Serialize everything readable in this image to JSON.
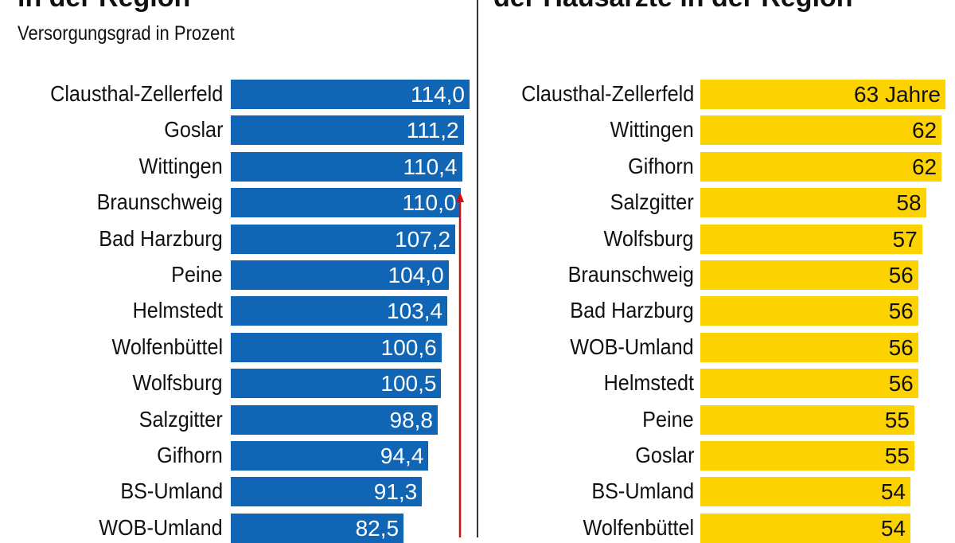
{
  "chart_data": [
    {
      "type": "bar",
      "orientation": "horizontal",
      "title": "in der Region",
      "subtitle": "Versorgungsgrad in Prozent",
      "color": "#1066b5",
      "categories": [
        "Clausthal-Zellerfeld",
        "Goslar",
        "Wittingen",
        "Braunschweig",
        "Bad Harzburg",
        "Peine",
        "Helmstedt",
        "Wolfenbüttel",
        "Wolfsburg",
        "Salzgitter",
        "Gifhorn",
        "BS-Umland",
        "WOB-Umland"
      ],
      "values": [
        114.0,
        111.2,
        110.4,
        110.0,
        107.2,
        104.0,
        103.4,
        100.6,
        100.5,
        98.8,
        94.4,
        91.3,
        82.5
      ],
      "labels": [
        "114,0",
        "111,2",
        "110,4",
        "110,0",
        "107,2",
        "104,0",
        "103,4",
        "100,6",
        "100,5",
        "98,8",
        "94,4",
        "91,3",
        "82,5"
      ],
      "annotation": {
        "type": "arrow",
        "color": "#cc1111",
        "points_to": "Braunschweig"
      }
    },
    {
      "type": "bar",
      "orientation": "horizontal",
      "title": "der Hausärzte in der Region",
      "color": "#fcd200",
      "categories": [
        "Clausthal-Zellerfeld",
        "Wittingen",
        "Gifhorn",
        "Salzgitter",
        "Wolfsburg",
        "Braunschweig",
        "Bad Harzburg",
        "WOB-Umland",
        "Helmstedt",
        "Peine",
        "Goslar",
        "BS-Umland",
        "Wolfenbüttel"
      ],
      "values": [
        63,
        62,
        62,
        58,
        57,
        56,
        56,
        56,
        56,
        55,
        55,
        54,
        54
      ],
      "labels": [
        "63 Jahre",
        "62",
        "62",
        "58",
        "57",
        "56",
        "56",
        "56",
        "56",
        "55",
        "55",
        "54",
        "54"
      ]
    }
  ]
}
